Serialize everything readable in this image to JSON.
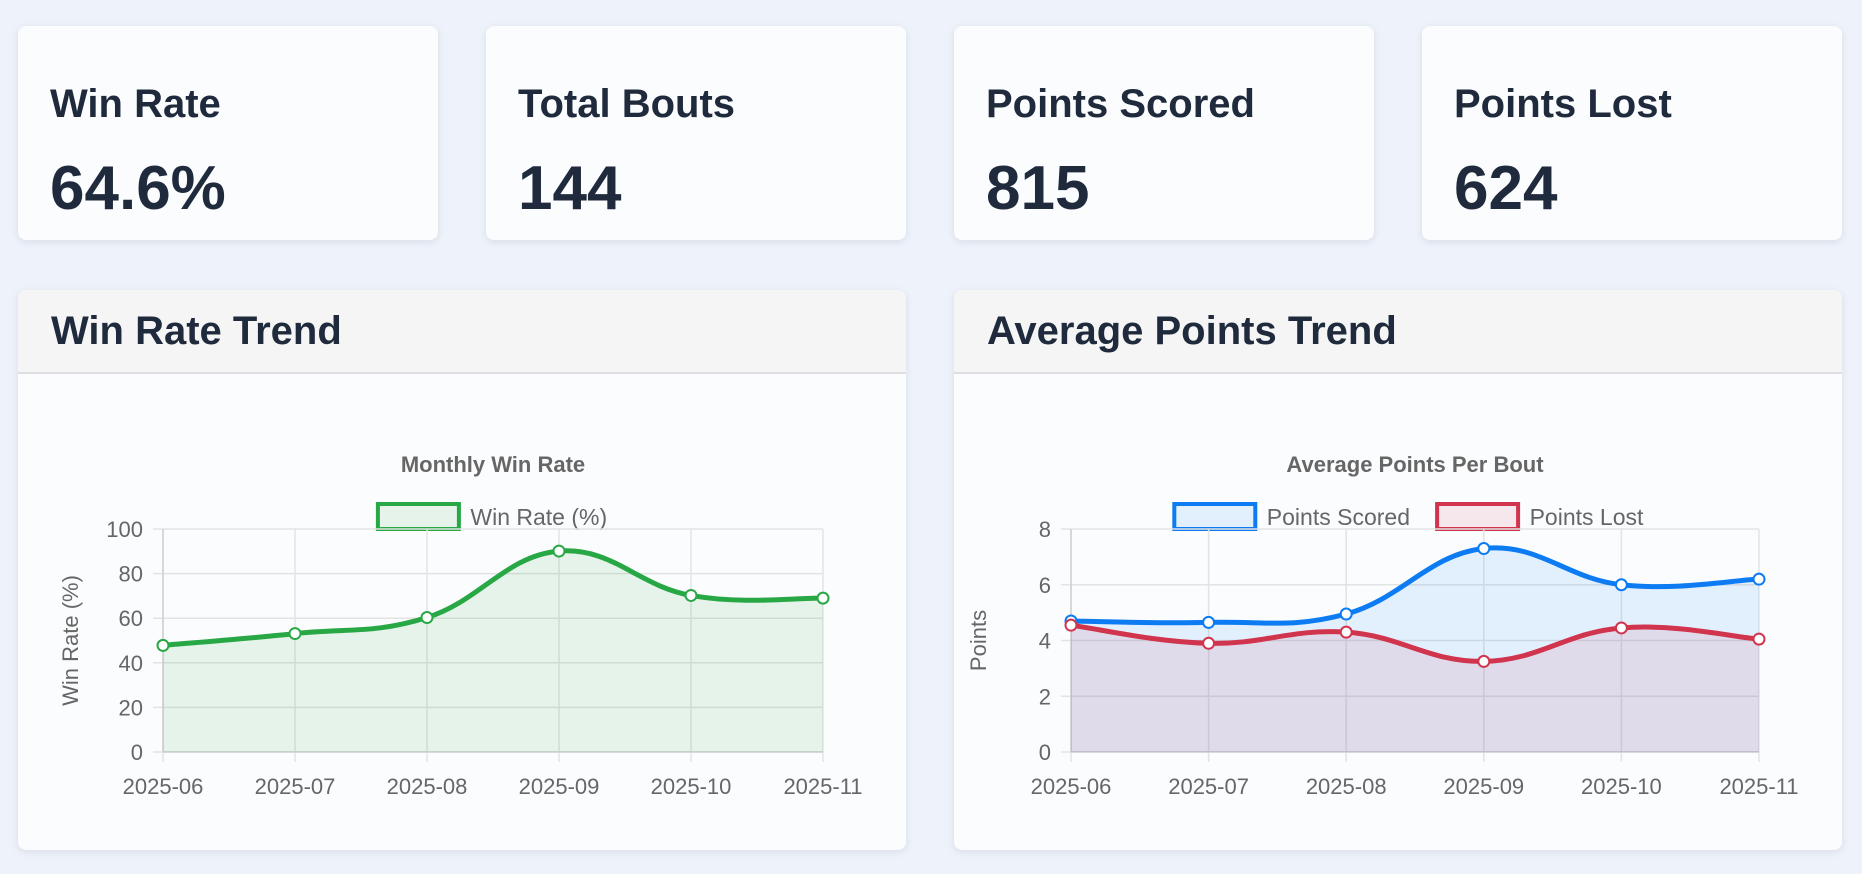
{
  "stats": [
    {
      "label": "Win Rate",
      "value": "64.6%"
    },
    {
      "label": "Total Bouts",
      "value": "144"
    },
    {
      "label": "Points Scored",
      "value": "815"
    },
    {
      "label": "Points Lost",
      "value": "624"
    }
  ],
  "panels": {
    "win_rate": {
      "header": "Win Rate Trend"
    },
    "avg_points": {
      "header": "Average Points Trend"
    }
  },
  "chart_data": [
    {
      "type": "area",
      "title": "Monthly Win Rate",
      "xlabel": "",
      "ylabel": "Win Rate (%)",
      "categories": [
        "2025-06",
        "2025-07",
        "2025-08",
        "2025-09",
        "2025-10",
        "2025-11"
      ],
      "ylim": [
        0,
        100
      ],
      "yticks": [
        0,
        20,
        40,
        60,
        80,
        100
      ],
      "grid": true,
      "legend": "top-center",
      "series": [
        {
          "name": "Win Rate (%)",
          "values": [
            47.8,
            53.1,
            60.3,
            90.1,
            70.2,
            69.0
          ],
          "color": "#28a745",
          "fill": "rgba(40,167,69,0.10)"
        }
      ]
    },
    {
      "type": "area",
      "title": "Average Points Per Bout",
      "xlabel": "",
      "ylabel": "Points",
      "categories": [
        "2025-06",
        "2025-07",
        "2025-08",
        "2025-09",
        "2025-10",
        "2025-11"
      ],
      "ylim": [
        0,
        8
      ],
      "yticks": [
        0,
        2,
        4,
        6,
        8
      ],
      "grid": true,
      "legend": "top-center",
      "series": [
        {
          "name": "Points Scored",
          "values": [
            4.7,
            4.65,
            4.95,
            7.3,
            6.0,
            6.2
          ],
          "color": "#0d7bf2",
          "fill": "rgba(13,123,242,0.10)"
        },
        {
          "name": "Points Lost",
          "values": [
            4.55,
            3.9,
            4.3,
            3.25,
            4.45,
            4.05
          ],
          "color": "#d1344d",
          "fill": "rgba(209,52,77,0.10)"
        }
      ]
    }
  ]
}
